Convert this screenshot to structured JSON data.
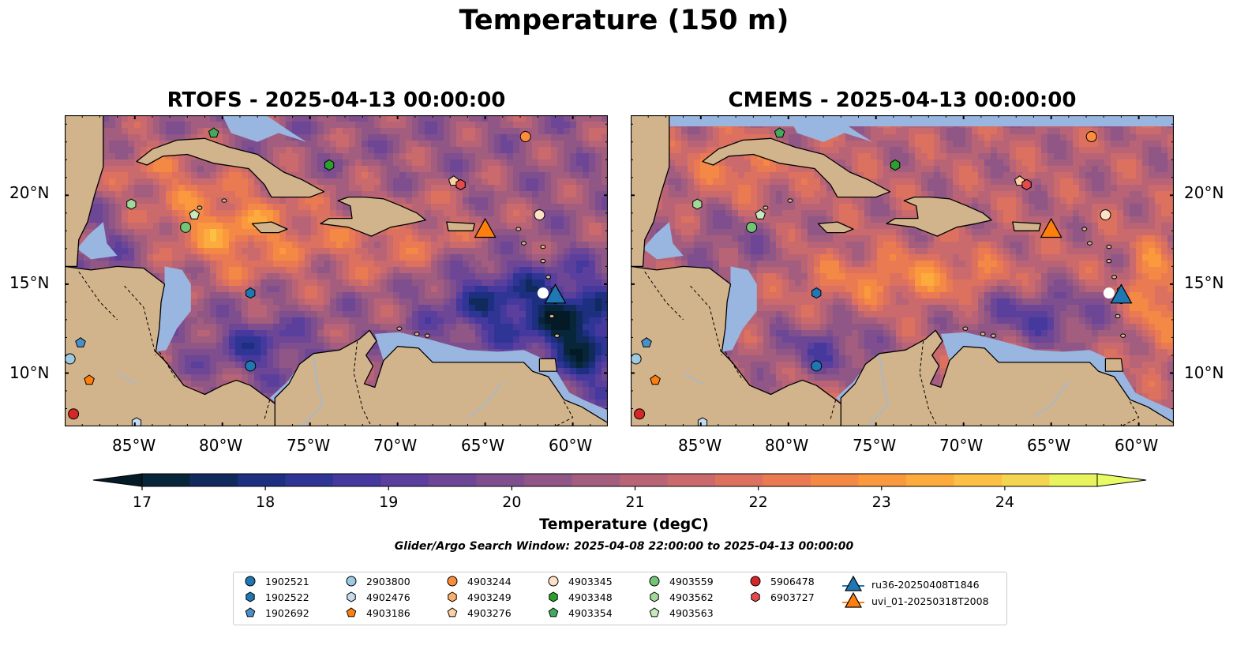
{
  "suptitle": "Temperature (150 m)",
  "panels": [
    {
      "title": "RTOFS - 2025-04-13 00:00:00"
    },
    {
      "title": "CMEMS - 2025-04-13 00:00:00"
    }
  ],
  "lon_ticks": [
    "85°W",
    "80°W",
    "75°W",
    "70°W",
    "65°W",
    "60°W"
  ],
  "lat_ticks": [
    "20°N",
    "15°N",
    "10°N"
  ],
  "colorbar": {
    "label": "Temperature (degC)",
    "ticks": [
      "17",
      "18",
      "19",
      "20",
      "21",
      "22",
      "23",
      "24"
    ],
    "range": [
      16.75,
      24.75
    ],
    "colors": [
      "#08263a",
      "#112a5c",
      "#1d2f80",
      "#2f3594",
      "#46399e",
      "#5b3f9d",
      "#6e4696",
      "#7e4e8e",
      "#8f5686",
      "#a35d7e",
      "#b86476",
      "#cb6a6c",
      "#dc7160",
      "#ea7a52",
      "#f48845",
      "#fa993e",
      "#fcac3c",
      "#fbc044",
      "#f3d552",
      "#e8f35e"
    ],
    "under_color": "#041a26",
    "over_color": "#e8fa64"
  },
  "search_window": "Glider/Argo Search Window: 2025-04-08 22:00:00 to 2025-04-13 00:00:00",
  "colors": {
    "land": "#d2b48c",
    "shelf": "#99b6e0",
    "coast": "#000000"
  },
  "legend": [
    {
      "label": "1902521",
      "marker": "circle",
      "color": "#1f77b4"
    },
    {
      "label": "1902522",
      "marker": "hexagon",
      "color": "#1f77b4"
    },
    {
      "label": "1902692",
      "marker": "pentagon",
      "color": "#4a90c8"
    },
    {
      "label": "2903800",
      "marker": "circle",
      "color": "#9ecae1"
    },
    {
      "label": "4902476",
      "marker": "hexagon",
      "color": "#c6dbef"
    },
    {
      "label": "4903186",
      "marker": "pentagon",
      "color": "#ff7f0e"
    },
    {
      "label": "4903244",
      "marker": "circle",
      "color": "#fd8d3c"
    },
    {
      "label": "4903249",
      "marker": "hexagon",
      "color": "#fdae6b"
    },
    {
      "label": "4903276",
      "marker": "pentagon",
      "color": "#fdd0a2"
    },
    {
      "label": "4903345",
      "marker": "circle",
      "color": "#fde0c5"
    },
    {
      "label": "4903348",
      "marker": "hexagon",
      "color": "#2ca02c"
    },
    {
      "label": "4903354",
      "marker": "pentagon",
      "color": "#41ab5d"
    },
    {
      "label": "4903559",
      "marker": "circle",
      "color": "#74c476"
    },
    {
      "label": "4903562",
      "marker": "hexagon",
      "color": "#a1d99b"
    },
    {
      "label": "4903563",
      "marker": "pentagon",
      "color": "#c7e9c0"
    },
    {
      "label": "5906478",
      "marker": "circle",
      "color": "#d62728"
    },
    {
      "label": "6903727",
      "marker": "hexagon",
      "color": "#e34a4a"
    },
    {
      "label": "ru36-20250408T1846",
      "marker": "triangle",
      "color": "#1f77b4"
    },
    {
      "label": "uvi_01-20250318T2008",
      "marker": "triangle",
      "color": "#ff7f0e"
    }
  ],
  "map_extent": {
    "lon": [
      -89,
      -58
    ],
    "lat": [
      7,
      24.5
    ]
  },
  "argo_points": [
    {
      "id": "1902521",
      "lon": -78.4,
      "lat": 10.4
    },
    {
      "id": "1902522",
      "lon": -78.4,
      "lat": 14.5
    },
    {
      "id": "1902692",
      "lon": -88.1,
      "lat": 11.7
    },
    {
      "id": "2903800",
      "lon": -88.7,
      "lat": 10.8
    },
    {
      "id": "4902476",
      "lon": -84.9,
      "lat": 7.2
    },
    {
      "id": "4903186",
      "lon": -87.6,
      "lat": 9.6
    },
    {
      "id": "4903244",
      "lon": -62.7,
      "lat": 23.3
    },
    {
      "id": "4903249",
      "lon": -66.4,
      "lat": 20.6
    },
    {
      "id": "4903276",
      "lon": -66.8,
      "lat": 20.8
    },
    {
      "id": "4903345",
      "lon": -61.9,
      "lat": 18.9
    },
    {
      "id": "4903348",
      "lon": -73.9,
      "lat": 21.7
    },
    {
      "id": "4903354",
      "lon": -80.5,
      "lat": 23.5
    },
    {
      "id": "4903559",
      "lon": -82.1,
      "lat": 18.2
    },
    {
      "id": "4903562",
      "lon": -85.2,
      "lat": 19.5
    },
    {
      "id": "4903563",
      "lon": -81.6,
      "lat": 18.9
    },
    {
      "id": "5906478",
      "lon": -88.5,
      "lat": 7.7
    },
    {
      "id": "6903727",
      "lon": -66.4,
      "lat": 20.6
    }
  ],
  "glider_points": [
    {
      "id": "ru36-20250408T1846",
      "lon": -61.0,
      "lat": 14.4
    },
    {
      "id": "uvi_01-20250318T2008",
      "lon": -65.0,
      "lat": 18.1
    }
  ]
}
